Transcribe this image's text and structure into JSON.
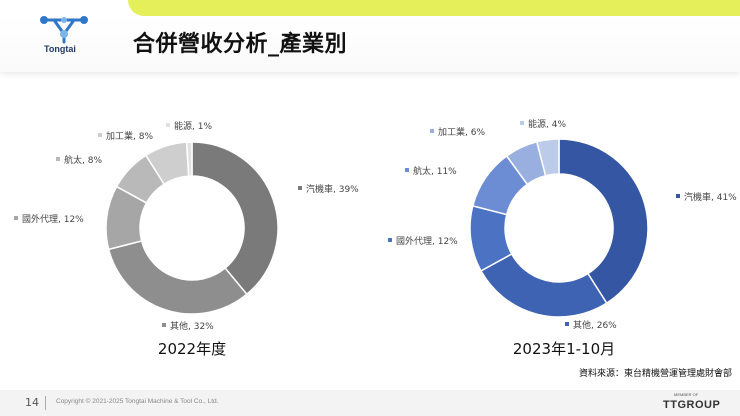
{
  "header": {
    "title": "合併營收分析_產業別",
    "logo_text": "Tongtai"
  },
  "chart_data": [
    {
      "type": "pie",
      "donut": true,
      "title": "2022年度",
      "palette": "gray",
      "slices": [
        {
          "label": "汽機車",
          "value": 39,
          "label_text": "汽機車, 39%",
          "color": "#7a7a7a"
        },
        {
          "label": "其他",
          "value": 32,
          "label_text": "其他, 32%",
          "color": "#8e8e8e"
        },
        {
          "label": "國外代理",
          "value": 12,
          "label_text": "國外代理, 12%",
          "color": "#a6a6a6"
        },
        {
          "label": "航太",
          "value": 8,
          "label_text": "航太, 8%",
          "color": "#b9b9b9"
        },
        {
          "label": "加工業",
          "value": 8,
          "label_text": "加工業, 8%",
          "color": "#cecece"
        },
        {
          "label": "能源",
          "value": 1,
          "label_text": "能源, 1%",
          "color": "#e2e2e2"
        }
      ]
    },
    {
      "type": "pie",
      "donut": true,
      "title": "2023年1-10月",
      "palette": "blue",
      "slices": [
        {
          "label": "汽機車",
          "value": 41,
          "label_text": "汽機車, 41%",
          "color": "#3557a3"
        },
        {
          "label": "其他",
          "value": 26,
          "label_text": "其他, 26%",
          "color": "#3f63b3"
        },
        {
          "label": "國外代理",
          "value": 12,
          "label_text": "國外代理, 12%",
          "color": "#4c72c4"
        },
        {
          "label": "航太",
          "value": 11,
          "label_text": "航太, 11%",
          "color": "#6c8cd3"
        },
        {
          "label": "加工業",
          "value": 6,
          "label_text": "加工業, 6%",
          "color": "#99afdf"
        },
        {
          "label": "能源",
          "value": 4,
          "label_text": "能源, 4%",
          "color": "#bccbea"
        }
      ]
    }
  ],
  "source_note": "資料來源：東台精機營運管理處財會部",
  "footer": {
    "page_number": "14",
    "copyright": "Copyright © 2021-2025 Tongtai Machine & Tool Co., Ltd.",
    "member_of": "MEMBER OF",
    "group_logo": "TTGROUP"
  }
}
